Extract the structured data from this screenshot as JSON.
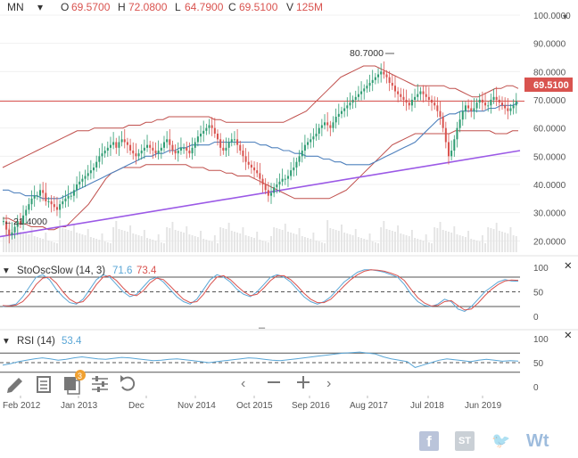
{
  "header": {
    "symbol": "MN",
    "open_label": "O",
    "open": "69.5700",
    "high_label": "H",
    "high": "72.0800",
    "low_label": "L",
    "low": "64.7900",
    "close_label": "C",
    "close": "69.5100",
    "volume_label": "V",
    "volume": "125M"
  },
  "colors": {
    "up": "#2e9c72",
    "down": "#d9534f",
    "bollinger": "#c0504d",
    "middle_band": "#4f81bd",
    "trendline": "#9b59e6",
    "close_line": "#d9534f",
    "stoch_k": "#5aa6d6",
    "stoch_d": "#d9534f"
  },
  "chart_data": [
    {
      "type": "candlestick",
      "x_tick_labels": [
        "Feb 2012",
        "Jan 2013",
        "Dec",
        "Nov 2014",
        "Oct 2015",
        "Sep 2016",
        "Aug 2017",
        "Jul 2018",
        "Jun 2019"
      ],
      "y_tick_labels": [
        "20.0000",
        "30.0000",
        "40.0000",
        "50.0000",
        "60.0000",
        "70.0000",
        "80.0000",
        "90.0000",
        "100.0000"
      ],
      "ylim": [
        16,
        100
      ],
      "last_close_label": "69.5100",
      "annotations": [
        {
          "text": "80.7000",
          "value": 80.7
        },
        {
          "text": "21.4000",
          "value": 21.4
        }
      ],
      "close": [
        27,
        24,
        22,
        23,
        25,
        27,
        26,
        29,
        31,
        33,
        35,
        36,
        36,
        38,
        37,
        34,
        34,
        33,
        32,
        31,
        33,
        34,
        35,
        36,
        36,
        38,
        40,
        41,
        42,
        43,
        44,
        45,
        46,
        48,
        50,
        51,
        52,
        53,
        54,
        55,
        53,
        55,
        56,
        55,
        54,
        52,
        51,
        50,
        51,
        52,
        53,
        54,
        53,
        52,
        51,
        52,
        53,
        55,
        56,
        54,
        52,
        51,
        52,
        53,
        53,
        52,
        51,
        53,
        55,
        57,
        58,
        59,
        60,
        61,
        60,
        58,
        56,
        53,
        52,
        53,
        55,
        56,
        56,
        54,
        52,
        50,
        48,
        47,
        46,
        45,
        44,
        42,
        40,
        38,
        36,
        37,
        39,
        40,
        41,
        42,
        42,
        43,
        45,
        46,
        48,
        50,
        52,
        54,
        55,
        56,
        57,
        58,
        60,
        61,
        62,
        61,
        60,
        62,
        64,
        65,
        66,
        67,
        68,
        69,
        70,
        71,
        72,
        73,
        74,
        75,
        76,
        77,
        78,
        79,
        80,
        79,
        78,
        76,
        75,
        73,
        72,
        71,
        70,
        69,
        68,
        70,
        71,
        72,
        73,
        72,
        71,
        70,
        69,
        68,
        66,
        64,
        60,
        55,
        50,
        52,
        56,
        60,
        63,
        66,
        68,
        67,
        66,
        67,
        69,
        70,
        69,
        68,
        68,
        70,
        71,
        70,
        69,
        68,
        67,
        66,
        67,
        68,
        69.51
      ],
      "moving_average": [
        38,
        38,
        37,
        37,
        36,
        36,
        36,
        35,
        35,
        35,
        35,
        36,
        37,
        38,
        39,
        40,
        41,
        42,
        43,
        44,
        45,
        46,
        47,
        48,
        49,
        50,
        50,
        51,
        51,
        52,
        52,
        53,
        53,
        54,
        54,
        54,
        54,
        55,
        55,
        55,
        55,
        55,
        55,
        55,
        55,
        54,
        54,
        53,
        53,
        52,
        52,
        51,
        51,
        50,
        50,
        50,
        49,
        49,
        48,
        48,
        47,
        47,
        47,
        47,
        47,
        48,
        49,
        50,
        51,
        52,
        53,
        54,
        55,
        57,
        59,
        61,
        63,
        64,
        65,
        65,
        66,
        66,
        66,
        66,
        66,
        67,
        67,
        68,
        68,
        68,
        69
      ],
      "bollinger_upper": [
        46,
        47,
        48,
        49,
        50,
        51,
        52,
        53,
        54,
        55,
        56,
        57,
        58,
        59,
        59,
        59,
        60,
        60,
        60,
        60,
        60,
        60,
        61,
        61,
        61,
        62,
        62,
        63,
        63,
        64,
        64,
        64,
        64,
        64,
        64,
        64,
        64,
        63,
        63,
        62,
        62,
        62,
        62,
        62,
        62,
        62,
        62,
        62,
        62,
        62,
        63,
        64,
        65,
        66,
        68,
        70,
        72,
        74,
        76,
        78,
        79,
        80,
        81,
        82,
        82,
        82,
        81,
        80,
        79,
        78,
        77,
        76,
        75,
        75,
        75,
        75,
        75,
        75,
        74,
        74,
        73,
        72,
        71,
        71,
        72,
        73,
        74,
        74,
        75,
        75,
        74
      ],
      "bollinger_lower": [
        28,
        28,
        27,
        26,
        26,
        25,
        25,
        25,
        24,
        24,
        25,
        25,
        27,
        29,
        31,
        33,
        36,
        39,
        42,
        44,
        45,
        46,
        46,
        46,
        46,
        47,
        47,
        47,
        47,
        47,
        47,
        47,
        47,
        46,
        46,
        46,
        45,
        45,
        45,
        44,
        44,
        43,
        43,
        43,
        42,
        41,
        40,
        39,
        38,
        37,
        36,
        35,
        35,
        35,
        35,
        35,
        35,
        35,
        36,
        37,
        38,
        40,
        42,
        44,
        46,
        48,
        50,
        52,
        54,
        55,
        56,
        57,
        58,
        58,
        58,
        58,
        58,
        58,
        58,
        59,
        59,
        59,
        59,
        59,
        59,
        59,
        58,
        58,
        58,
        59,
        59
      ],
      "trendline": [
        {
          "x": 0,
          "y": 21.5
        },
        {
          "x": 1,
          "y": 52
        }
      ]
    },
    {
      "type": "line",
      "title": "StoOscSlow (14, 3)",
      "k_value": "71.6",
      "d_value": "73.4",
      "y_tick_labels": [
        "100",
        "50",
        "0"
      ],
      "ylim": [
        0,
        100
      ],
      "levels": [
        80,
        50,
        20
      ],
      "series": [
        {
          "name": "71.6",
          "values": [
            20,
            22,
            25,
            40,
            60,
            80,
            85,
            75,
            55,
            40,
            28,
            25,
            35,
            55,
            75,
            85,
            80,
            65,
            50,
            40,
            45,
            60,
            75,
            80,
            70,
            55,
            40,
            30,
            25,
            35,
            55,
            75,
            85,
            80,
            70,
            55,
            45,
            40,
            50,
            65,
            80,
            85,
            80,
            70,
            55,
            40,
            30,
            25,
            30,
            40,
            55,
            70,
            80,
            90,
            95,
            95,
            93,
            90,
            85,
            80,
            65,
            45,
            30,
            22,
            20,
            25,
            35,
            30,
            15,
            10,
            20,
            35,
            50,
            60,
            70,
            75,
            72,
            71.6
          ]
        },
        {
          "name": "73.4",
          "values": [
            22,
            21,
            23,
            30,
            45,
            65,
            78,
            80,
            68,
            50,
            35,
            27,
            30,
            45,
            65,
            80,
            83,
            73,
            58,
            45,
            42,
            52,
            68,
            78,
            75,
            62,
            48,
            35,
            28,
            30,
            45,
            65,
            80,
            83,
            75,
            62,
            50,
            42,
            45,
            58,
            73,
            83,
            83,
            75,
            62,
            47,
            35,
            28,
            28,
            35,
            48,
            62,
            75,
            85,
            92,
            95,
            94,
            92,
            88,
            83,
            73,
            55,
            38,
            27,
            21,
            22,
            30,
            32,
            22,
            13,
            15,
            27,
            42,
            55,
            65,
            72,
            74,
            73.4
          ]
        }
      ]
    },
    {
      "type": "line",
      "title": "RSI (14)",
      "value": "53.4",
      "y_tick_labels": [
        "100",
        "50",
        "0"
      ],
      "ylim": [
        0,
        100
      ],
      "levels": [
        70,
        50,
        30
      ],
      "series": [
        {
          "name": "53.4",
          "values": [
            45,
            48,
            52,
            55,
            58,
            60,
            58,
            55,
            57,
            60,
            62,
            60,
            58,
            57,
            59,
            61,
            60,
            58,
            56,
            54,
            55,
            57,
            58,
            56,
            54,
            52,
            50,
            52,
            54,
            56,
            58,
            60,
            59,
            57,
            55,
            54,
            56,
            58,
            60,
            62,
            64,
            66,
            68,
            70,
            71,
            72,
            70,
            68,
            62,
            58,
            55,
            52,
            40,
            45,
            50,
            55,
            58,
            56,
            54,
            52,
            55,
            57,
            55,
            53,
            54,
            53.4
          ]
        }
      ]
    }
  ],
  "toolbar": {
    "tools": [
      {
        "name": "pencil-icon"
      },
      {
        "name": "notes-icon"
      },
      {
        "name": "layers-icon",
        "badge": "3"
      },
      {
        "name": "settings-sliders-icon"
      },
      {
        "name": "undo-icon"
      },
      {
        "name": "scroll-left-icon"
      },
      {
        "name": "zoom-out-icon"
      },
      {
        "name": "zoom-in-icon"
      },
      {
        "name": "scroll-right-icon"
      }
    ]
  },
  "social": {
    "items": [
      {
        "name": "facebook-icon",
        "text": "f",
        "color": "#3b5998"
      },
      {
        "name": "stocktwits-icon",
        "text": "ST",
        "color": "#6b7b8c"
      },
      {
        "name": "twitter-icon",
        "text": "🐦",
        "color": "#1da1f2"
      },
      {
        "name": "wt-icon",
        "text": "Wt",
        "color": "#2a6db5"
      }
    ]
  }
}
